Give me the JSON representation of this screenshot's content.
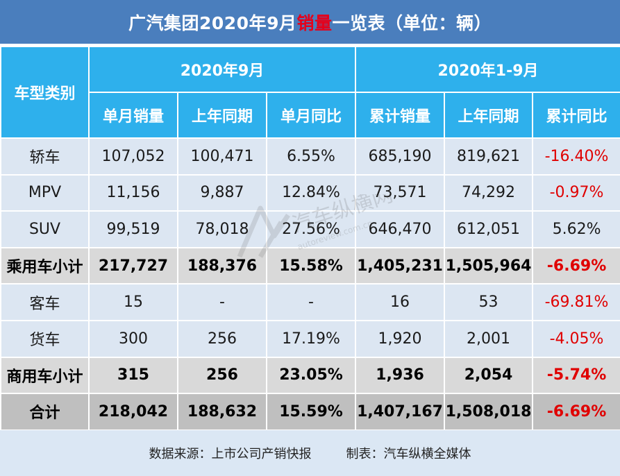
{
  "title": {
    "part1": "广汽集团2020年9月",
    "highlight": "销量",
    "part2": "一览表（单位：辆）",
    "highlight_color": "#e6001a"
  },
  "table": {
    "header": {
      "category": "车型类别",
      "group1": "2020年9月",
      "group2": "2020年1-9月",
      "cols": [
        "单月销量",
        "上年同期",
        "单月同比",
        "累计销量",
        "上年同期",
        "累计同比"
      ]
    },
    "rows": [
      {
        "label": "轿车",
        "style": "light",
        "values": [
          "107,052",
          "100,471",
          "6.55%",
          "685,190",
          "819,621",
          "-16.40%"
        ]
      },
      {
        "label": "MPV",
        "style": "light",
        "values": [
          "11,156",
          "9,887",
          "12.84%",
          "73,571",
          "74,292",
          "-0.97%"
        ]
      },
      {
        "label": "SUV",
        "style": "light",
        "values": [
          "99,519",
          "78,018",
          "27.56%",
          "646,470",
          "612,051",
          "5.62%"
        ]
      },
      {
        "label": "乘用车小计",
        "style": "gray",
        "values": [
          "217,727",
          "188,376",
          "15.58%",
          "1,405,231",
          "1,505,964",
          "-6.69%"
        ]
      },
      {
        "label": "客车",
        "style": "light",
        "values": [
          "15",
          "-",
          "-",
          "16",
          "53",
          "-69.81%"
        ]
      },
      {
        "label": "货车",
        "style": "light",
        "values": [
          "300",
          "256",
          "17.19%",
          "1,920",
          "2,001",
          "-4.05%"
        ]
      },
      {
        "label": "商用车小计",
        "style": "gray",
        "values": [
          "315",
          "256",
          "23.05%",
          "1,936",
          "2,054",
          "-5.74%"
        ]
      },
      {
        "label": "合计",
        "style": "total",
        "values": [
          "218,042",
          "188,632",
          "15.59%",
          "1,407,167",
          "1,508,018",
          "-6.69%"
        ]
      }
    ]
  },
  "footer": {
    "source": "数据来源：上市公司产销快报",
    "maker": "制表：汽车纵横全媒体"
  },
  "watermark": {
    "text": "汽车纵横网",
    "url": "autoreview.com.cn"
  },
  "colors": {
    "title_bg": "#4a7ebd",
    "header_bg": "#2eb0ec",
    "row_light": "#dce6f2",
    "row_gray": "#d9d9d9",
    "row_total": "#bfbfbf",
    "negative": "#e00000"
  }
}
